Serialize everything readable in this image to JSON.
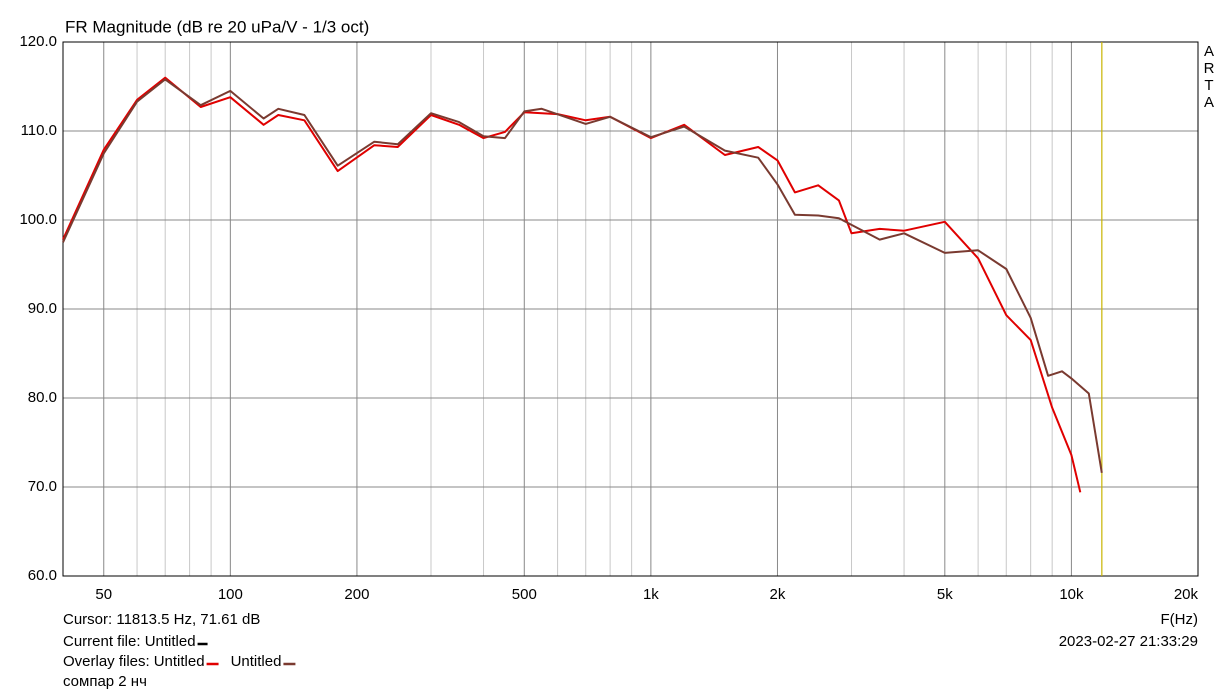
{
  "chart_data": {
    "type": "line",
    "title": "FR Magnitude (dB re 20 uPa/V - 1/3 oct)",
    "x_label": "F(Hz)",
    "log_x": true,
    "grid": true,
    "xlim": [
      40,
      20000
    ],
    "ylim": [
      60,
      120
    ],
    "xticks": [
      50,
      100,
      200,
      500,
      {
        "value": 1000,
        "label": "1k"
      },
      {
        "value": 2000,
        "label": "2k"
      },
      {
        "value": 5000,
        "label": "5k"
      },
      {
        "value": 10000,
        "label": "10k"
      },
      {
        "value": 20000,
        "label": "20k"
      }
    ],
    "xminorticks": [
      40,
      60,
      70,
      80,
      90,
      300,
      400,
      600,
      700,
      800,
      900,
      3000,
      4000,
      6000,
      7000,
      8000,
      9000
    ],
    "yticks": [
      {
        "value": 60,
        "label": "60.0"
      },
      {
        "value": 70,
        "label": "70.0"
      },
      {
        "value": 80,
        "label": "80.0"
      },
      {
        "value": 90,
        "label": "90.0"
      },
      {
        "value": 100,
        "label": "100.0"
      },
      {
        "value": 110,
        "label": "110.0"
      },
      {
        "value": 120,
        "label": "120.0"
      }
    ],
    "cursor": {
      "label": "Cursor: 11813.5 Hz, 71.61 dB",
      "x": 11813.5,
      "color": "#c8b400"
    },
    "current_file": {
      "label": "Current file: Untitled",
      "color": "#000000"
    },
    "overlay_label": "Overlay files:",
    "comment": "сомпар 2 нч",
    "timestamp": "2023-02-27  21:33:29",
    "logo": [
      "A",
      "R",
      "T",
      "A"
    ],
    "series": [
      {
        "name": "Untitled",
        "color": "#e00000",
        "x": [
          40,
          50,
          60,
          70,
          85,
          100,
          120,
          130,
          150,
          180,
          220,
          250,
          300,
          350,
          400,
          450,
          500,
          600,
          700,
          800,
          1000,
          1200,
          1500,
          1800,
          2000,
          2200,
          2500,
          2800,
          3000,
          3500,
          4000,
          5000,
          6000,
          7000,
          8000,
          9000,
          10000,
          10500
        ],
        "values": [
          97.8,
          107.9,
          113.5,
          116.0,
          112.7,
          113.8,
          110.7,
          111.8,
          111.2,
          105.5,
          108.4,
          108.2,
          111.8,
          110.7,
          109.2,
          109.9,
          112.1,
          111.9,
          111.2,
          111.6,
          109.2,
          110.7,
          107.3,
          108.2,
          106.7,
          103.1,
          103.9,
          102.2,
          98.5,
          99.0,
          98.8,
          99.8,
          95.7,
          89.3,
          86.5,
          78.9,
          73.6,
          69.4
        ]
      },
      {
        "name": "Untitled",
        "color": "#7a3a30",
        "x": [
          40,
          50,
          60,
          70,
          85,
          100,
          120,
          130,
          150,
          180,
          220,
          250,
          300,
          350,
          400,
          450,
          500,
          550,
          700,
          800,
          1000,
          1200,
          1500,
          1800,
          2000,
          2200,
          2500,
          2800,
          3500,
          4000,
          5000,
          6000,
          7000,
          8000,
          8800,
          9500,
          10000,
          11000,
          11813.5
        ],
        "values": [
          97.5,
          107.5,
          113.3,
          115.8,
          112.9,
          114.5,
          111.4,
          112.5,
          111.8,
          106.1,
          108.8,
          108.5,
          112.0,
          111.0,
          109.4,
          109.2,
          112.2,
          112.5,
          110.8,
          111.6,
          109.3,
          110.5,
          107.8,
          107.0,
          104.0,
          100.6,
          100.5,
          100.2,
          97.8,
          98.5,
          96.3,
          96.6,
          94.5,
          89.0,
          82.5,
          83.0,
          82.2,
          80.5,
          71.6
        ]
      }
    ]
  }
}
